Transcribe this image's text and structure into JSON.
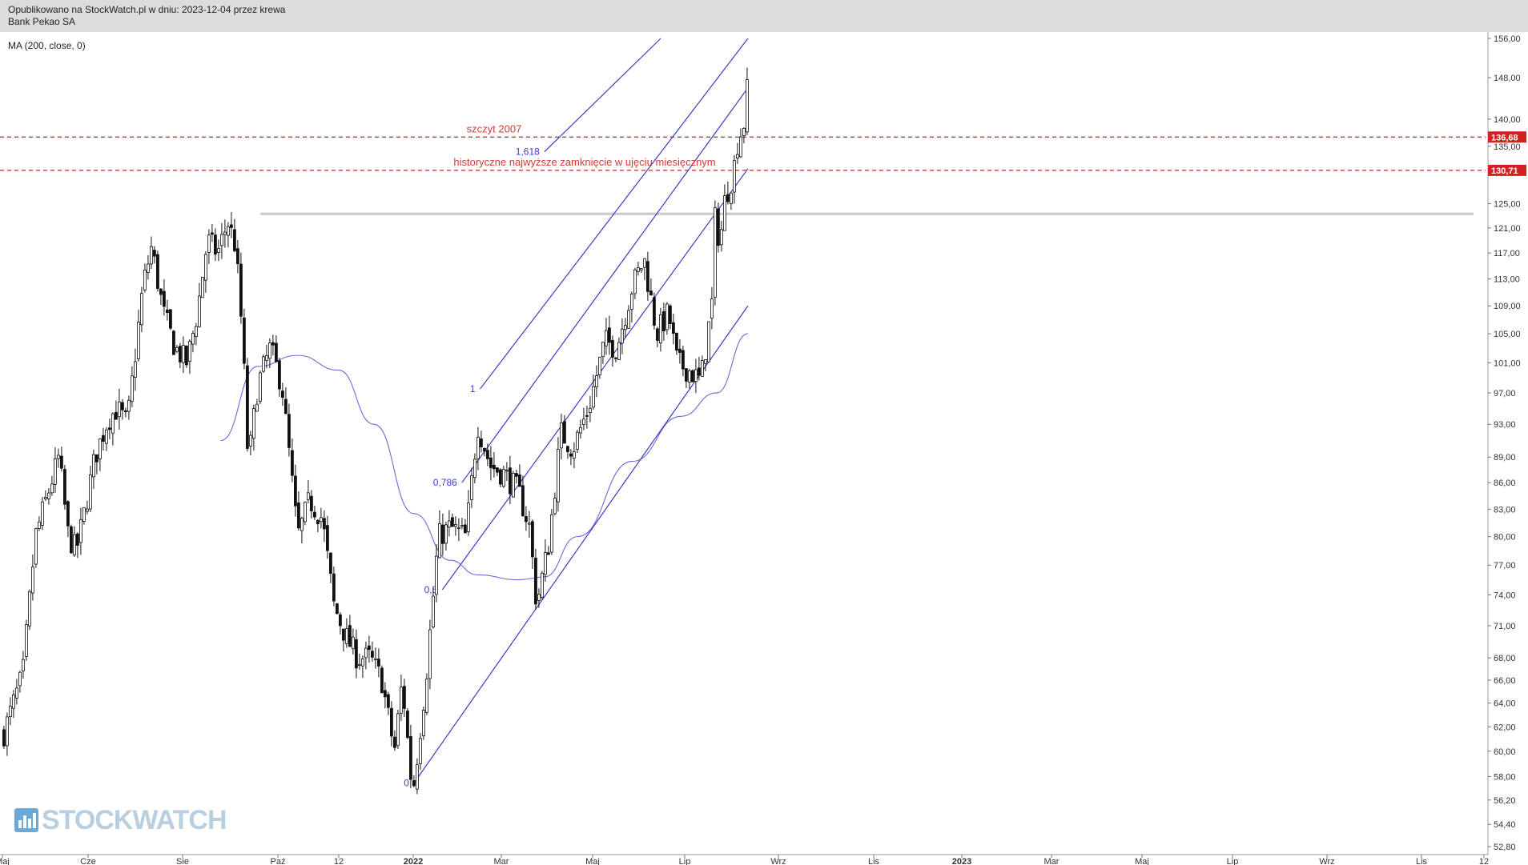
{
  "header": {
    "published": "Opublikowano na StockWatch.pl w dniu: 2023-12-04 przez krewa",
    "instrument": "Bank Pekao SA"
  },
  "indicator_label": "MA (200, close, 0)",
  "watermark": "STOCKWATCH",
  "chart_data": {
    "type": "candlestick",
    "y_scale": "log",
    "ylim": [
      52.8,
      156.0
    ],
    "y_ticks": [
      "156,00",
      "148,00",
      "140,00",
      "135,00",
      "125,00",
      "121,00",
      "117,00",
      "113,00",
      "109,00",
      "105,00",
      "101,00",
      "97,00",
      "93,00",
      "89,00",
      "86,00",
      "83,00",
      "80,00",
      "77,00",
      "74,00",
      "71,00",
      "68,00",
      "66,00",
      "64,00",
      "62,00",
      "60,00",
      "58,00",
      "56,20",
      "54,40",
      "52,80"
    ],
    "price_labels": [
      {
        "value": "136,68",
        "color": "#d42020"
      },
      {
        "value": "130,71",
        "color": "#d42020"
      }
    ],
    "x_ticks": [
      {
        "label": "Maj",
        "bold": false
      },
      {
        "label": "Cze",
        "bold": false
      },
      {
        "label": "Sie",
        "bold": false
      },
      {
        "label": "Paź",
        "bold": false
      },
      {
        "label": "12",
        "bold": false
      },
      {
        "label": "2022",
        "bold": true
      },
      {
        "label": "Mar",
        "bold": false
      },
      {
        "label": "Maj",
        "bold": false
      },
      {
        "label": "Lip",
        "bold": false
      },
      {
        "label": "Wrz",
        "bold": false
      },
      {
        "label": "Lis",
        "bold": false
      },
      {
        "label": "2023",
        "bold": true
      },
      {
        "label": "Mar",
        "bold": false
      },
      {
        "label": "Maj",
        "bold": false
      },
      {
        "label": "Lip",
        "bold": false
      },
      {
        "label": "Wrz",
        "bold": false
      },
      {
        "label": "Lis",
        "bold": false
      },
      {
        "label": "12",
        "bold": false
      }
    ],
    "price_path_anchors": [
      {
        "date": "2021-05-01",
        "close": 61.5
      },
      {
        "date": "2021-05-25",
        "close": 66.5
      },
      {
        "date": "2021-06-10",
        "close": 80.0
      },
      {
        "date": "2021-06-30",
        "close": 86.0
      },
      {
        "date": "2021-07-10",
        "close": 89.0
      },
      {
        "date": "2021-07-22",
        "close": 80.0
      },
      {
        "date": "2021-08-01",
        "close": 78.5
      },
      {
        "date": "2021-08-10",
        "close": 82.0
      },
      {
        "date": "2021-08-25",
        "close": 89.0
      },
      {
        "date": "2021-09-10",
        "close": 93.5
      },
      {
        "date": "2021-09-22",
        "close": 95.0
      },
      {
        "date": "2021-10-05",
        "close": 93.0
      },
      {
        "date": "2021-10-25",
        "close": 112.0
      },
      {
        "date": "2021-11-05",
        "close": 118.0
      },
      {
        "date": "2021-11-20",
        "close": 108.0
      },
      {
        "date": "2021-12-05",
        "close": 103.0
      },
      {
        "date": "2021-12-20",
        "close": 101.0
      },
      {
        "date": "2022-01-02",
        "close": 108.0
      },
      {
        "date": "2022-01-15",
        "close": 119.0
      },
      {
        "date": "2022-01-28",
        "close": 117.0
      },
      {
        "date": "2022-02-10",
        "close": 122.0
      },
      {
        "date": "2022-02-20",
        "close": 118.0
      },
      {
        "date": "2022-03-01",
        "close": 104.0
      },
      {
        "date": "2022-03-08",
        "close": 88.0
      },
      {
        "date": "2022-03-20",
        "close": 98.0
      },
      {
        "date": "2022-04-05",
        "close": 103.0
      },
      {
        "date": "2022-04-20",
        "close": 98.0
      },
      {
        "date": "2022-05-10",
        "close": 80.0
      },
      {
        "date": "2022-05-25",
        "close": 84.0
      },
      {
        "date": "2022-06-10",
        "close": 82.0
      },
      {
        "date": "2022-06-25",
        "close": 73.0
      },
      {
        "date": "2022-07-10",
        "close": 70.0
      },
      {
        "date": "2022-07-25",
        "close": 68.0
      },
      {
        "date": "2022-08-10",
        "close": 68.0
      },
      {
        "date": "2022-08-25",
        "close": 66.0
      },
      {
        "date": "2022-09-10",
        "close": 60.0
      },
      {
        "date": "2022-09-20",
        "close": 66.0
      },
      {
        "date": "2022-10-01",
        "close": 58.0
      },
      {
        "date": "2022-10-05",
        "close": 57.5
      },
      {
        "date": "2022-10-20",
        "close": 66.0
      },
      {
        "date": "2022-11-05",
        "close": 80.0
      },
      {
        "date": "2022-11-20",
        "close": 81.0
      },
      {
        "date": "2022-12-10",
        "close": 80.0
      },
      {
        "date": "2022-12-25",
        "close": 93.0
      },
      {
        "date": "2023-01-10",
        "close": 88.0
      },
      {
        "date": "2023-01-28",
        "close": 87.0
      },
      {
        "date": "2023-02-15",
        "close": 85.0
      },
      {
        "date": "2023-03-01",
        "close": 81.0
      },
      {
        "date": "2023-03-10",
        "close": 73.0
      },
      {
        "date": "2023-03-25",
        "close": 79.0
      },
      {
        "date": "2023-04-10",
        "close": 92.0
      },
      {
        "date": "2023-04-25",
        "close": 90.0
      },
      {
        "date": "2023-05-15",
        "close": 95.0
      },
      {
        "date": "2023-06-05",
        "close": 104.0
      },
      {
        "date": "2023-06-20",
        "close": 103.0
      },
      {
        "date": "2023-07-10",
        "close": 112.0
      },
      {
        "date": "2023-07-25",
        "close": 116.0
      },
      {
        "date": "2023-08-10",
        "close": 105.0
      },
      {
        "date": "2023-08-25",
        "close": 108.0
      },
      {
        "date": "2023-09-05",
        "close": 101.0
      },
      {
        "date": "2023-09-20",
        "close": 100.0
      },
      {
        "date": "2023-10-05",
        "close": 98.5
      },
      {
        "date": "2023-10-20",
        "close": 110.0
      },
      {
        "date": "2023-10-25",
        "close": 130.0
      },
      {
        "date": "2023-10-28",
        "close": 117.0
      },
      {
        "date": "2023-11-05",
        "close": 126.0
      },
      {
        "date": "2023-11-15",
        "close": 130.0
      },
      {
        "date": "2023-11-22",
        "close": 137.0
      },
      {
        "date": "2023-11-28",
        "close": 138.0
      },
      {
        "date": "2023-12-04",
        "close": 147.0
      }
    ],
    "ma200": [
      {
        "date": "2022-02-01",
        "value": 91.0
      },
      {
        "date": "2022-03-20",
        "value": 100.5
      },
      {
        "date": "2022-05-10",
        "value": 102.0
      },
      {
        "date": "2022-07-01",
        "value": 100.0
      },
      {
        "date": "2022-08-15",
        "value": 93.0
      },
      {
        "date": "2022-10-05",
        "value": 82.5
      },
      {
        "date": "2022-11-20",
        "value": 77.5
      },
      {
        "date": "2022-12-25",
        "value": 76.0
      },
      {
        "date": "2023-02-15",
        "value": 75.5
      },
      {
        "date": "2023-03-20",
        "value": 75.8
      },
      {
        "date": "2023-05-01",
        "value": 80.0
      },
      {
        "date": "2023-07-10",
        "value": 88.5
      },
      {
        "date": "2023-09-10",
        "value": 94.0
      },
      {
        "date": "2023-10-25",
        "value": 97.0
      },
      {
        "date": "2023-12-04",
        "value": 105.0
      }
    ],
    "horizontal_lines": [
      {
        "name": "szczyt-2007",
        "value": 136.68,
        "style": "dashed",
        "color": "#d42020",
        "label": "szczyt 2007"
      },
      {
        "name": "historyczne-zamkniecie",
        "value": 130.71,
        "style": "dashed",
        "color": "#d42020",
        "label": "historyczne najwyższe zamknięcie w ujęciu miesięcznym"
      },
      {
        "name": "resistance-2022",
        "value": 123.3,
        "style": "solid",
        "color": "#c8c8c8",
        "label": ""
      }
    ],
    "fib_channel": [
      {
        "level": "0",
        "label": "0",
        "start": {
          "date": "2022-10-05",
          "value": 57.5
        },
        "end": {
          "date": "2023-12-04",
          "value": 109.0
        }
      },
      {
        "level": "0.5",
        "label": "0,5",
        "start": {
          "date": "2022-11-10",
          "value": 74.5
        },
        "end": {
          "date": "2023-12-04",
          "value": 131.0
        }
      },
      {
        "level": "0.786",
        "label": "0,786",
        "start": {
          "date": "2022-12-05",
          "value": 86.0
        },
        "end": {
          "date": "2023-12-04",
          "value": 146.0
        }
      },
      {
        "level": "1",
        "label": "1",
        "start": {
          "date": "2022-12-28",
          "value": 97.5
        },
        "end": {
          "date": "2023-12-04",
          "value": 156.0
        }
      },
      {
        "level": "1.618",
        "label": "1,618",
        "start": {
          "date": "2023-03-20",
          "value": 134.0
        },
        "end": {
          "date": "2023-08-15",
          "value": 156.0
        }
      }
    ]
  }
}
